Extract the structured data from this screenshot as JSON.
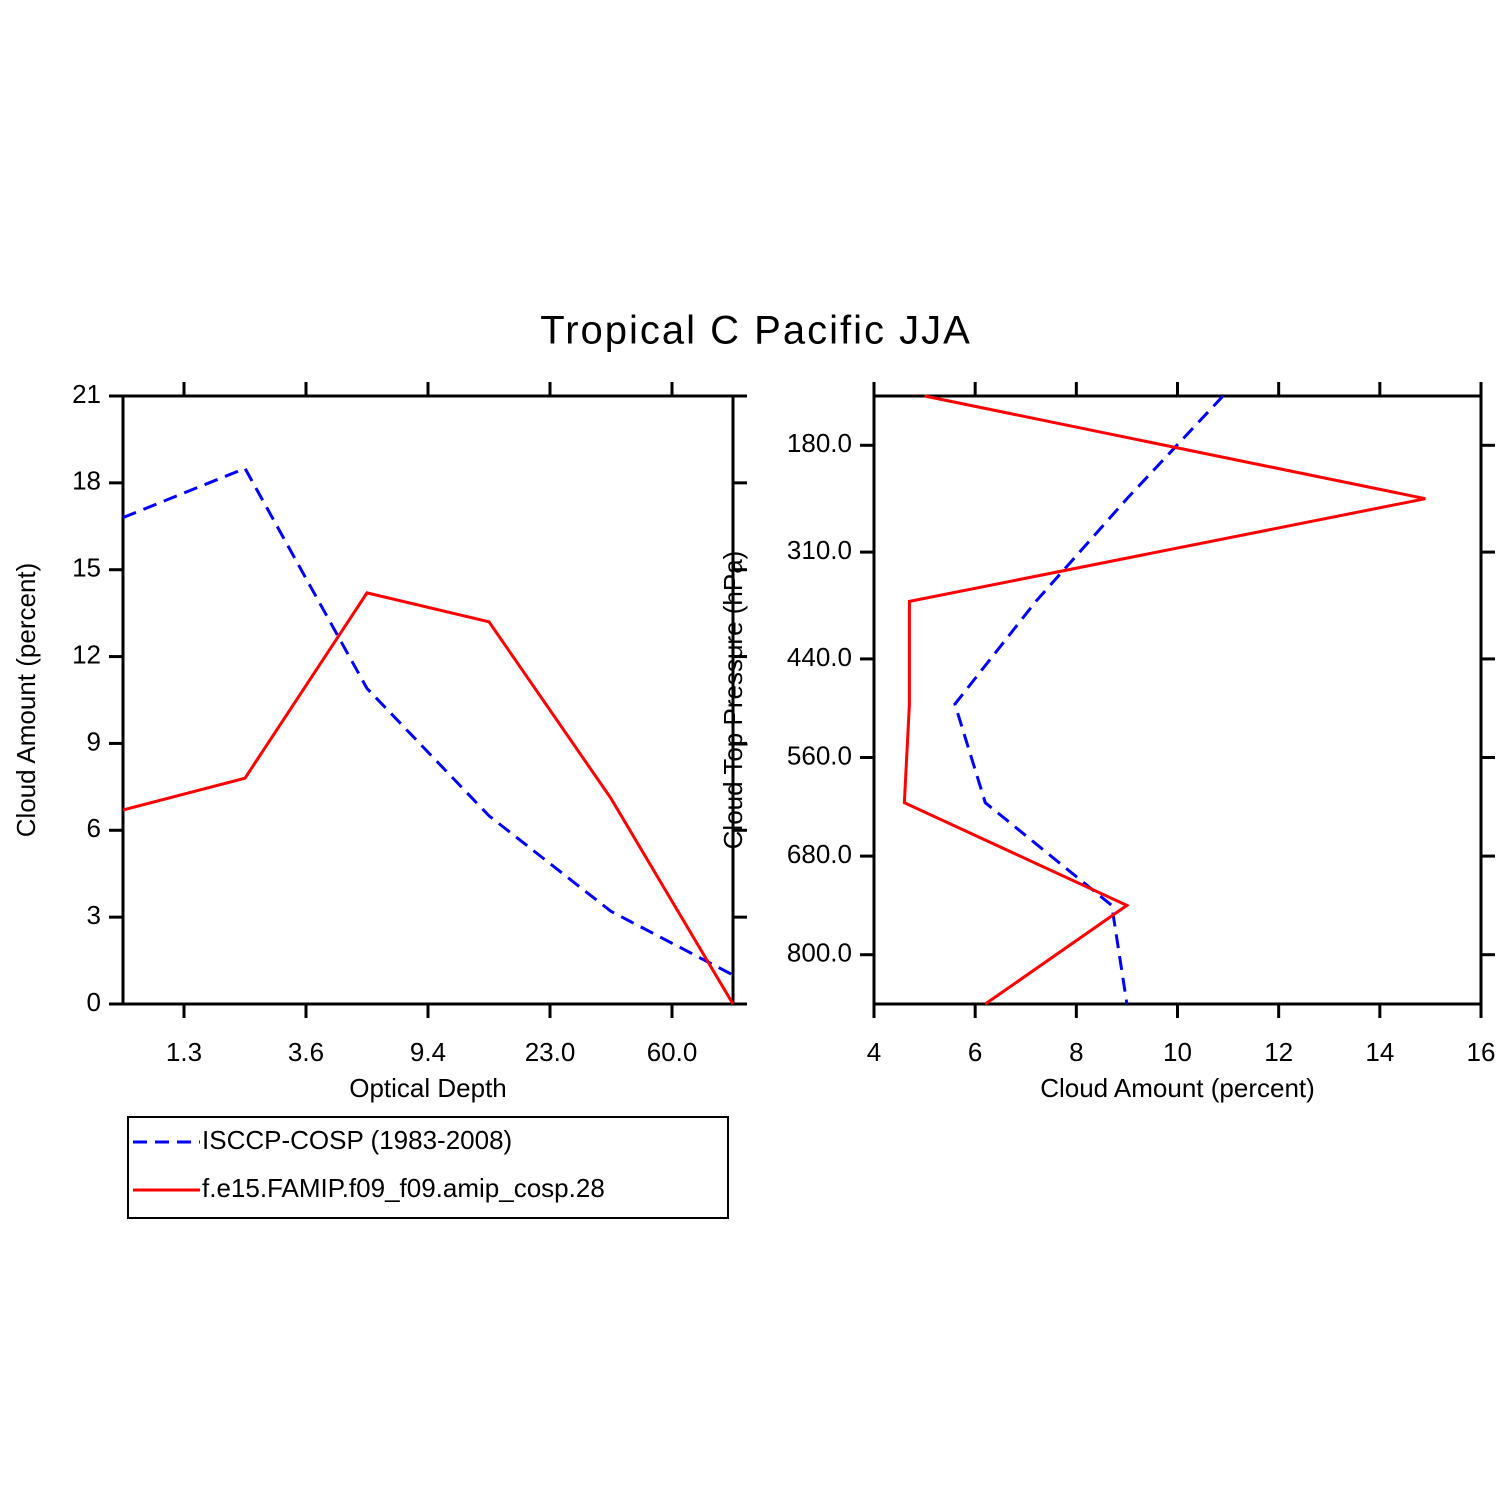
{
  "title": "Tropical C Pacific JJA",
  "chart_data": [
    {
      "type": "line",
      "x_label": "Optical Depth",
      "y_label": "Cloud Amount (percent)",
      "x": [
        0,
        1,
        2,
        3,
        4,
        5
      ],
      "xlim": [
        0,
        5
      ],
      "xticks": [
        {
          "value": 0.5,
          "label": "1.3"
        },
        {
          "value": 1.5,
          "label": "3.6"
        },
        {
          "value": 2.5,
          "label": "9.4"
        },
        {
          "value": 3.5,
          "label": "23.0"
        },
        {
          "value": 4.5,
          "label": "60.0"
        }
      ],
      "ylim": [
        0,
        21
      ],
      "yticks": [
        0,
        3,
        6,
        9,
        12,
        15,
        18,
        21
      ],
      "legend": "below",
      "series": [
        {
          "name": "ISCCP-COSP (1983-2008)",
          "color": "#0000ff",
          "dashed": true,
          "values": [
            16.8,
            18.5,
            10.9,
            6.5,
            3.2,
            1.0
          ]
        },
        {
          "name": "f.e15.FAMIP.f09_f09.amip_cosp.28",
          "color": "#ff0000",
          "dashed": false,
          "values": [
            6.7,
            7.8,
            14.2,
            13.2,
            7.1,
            0.0
          ]
        }
      ]
    },
    {
      "type": "line",
      "x_label": "Cloud Amount (percent)",
      "y_label": "Cloud Top Pressure (hPa)",
      "y": [
        120,
        245,
        370,
        495,
        615,
        740,
        860
      ],
      "ylim": [
        860,
        120
      ],
      "yticks": [
        {
          "value": 180,
          "label": "180.0"
        },
        {
          "value": 310,
          "label": "310.0"
        },
        {
          "value": 440,
          "label": "440.0"
        },
        {
          "value": 560,
          "label": "560.0"
        },
        {
          "value": 680,
          "label": "680.0"
        },
        {
          "value": 800,
          "label": "800.0"
        }
      ],
      "xlim": [
        4,
        16
      ],
      "xticks": [
        4,
        6,
        8,
        10,
        12,
        14,
        16
      ],
      "series": [
        {
          "name": "ISCCP-COSP (1983-2008)",
          "color": "#0000ff",
          "dashed": true,
          "values": [
            10.9,
            9.0,
            7.2,
            5.6,
            6.2,
            8.7,
            9.0
          ]
        },
        {
          "name": "f.e15.FAMIP.f09_f09.amip_cosp.28",
          "color": "#ff0000",
          "dashed": false,
          "values": [
            5.0,
            14.9,
            4.7,
            4.7,
            4.6,
            9.0,
            6.2
          ]
        }
      ]
    }
  ]
}
